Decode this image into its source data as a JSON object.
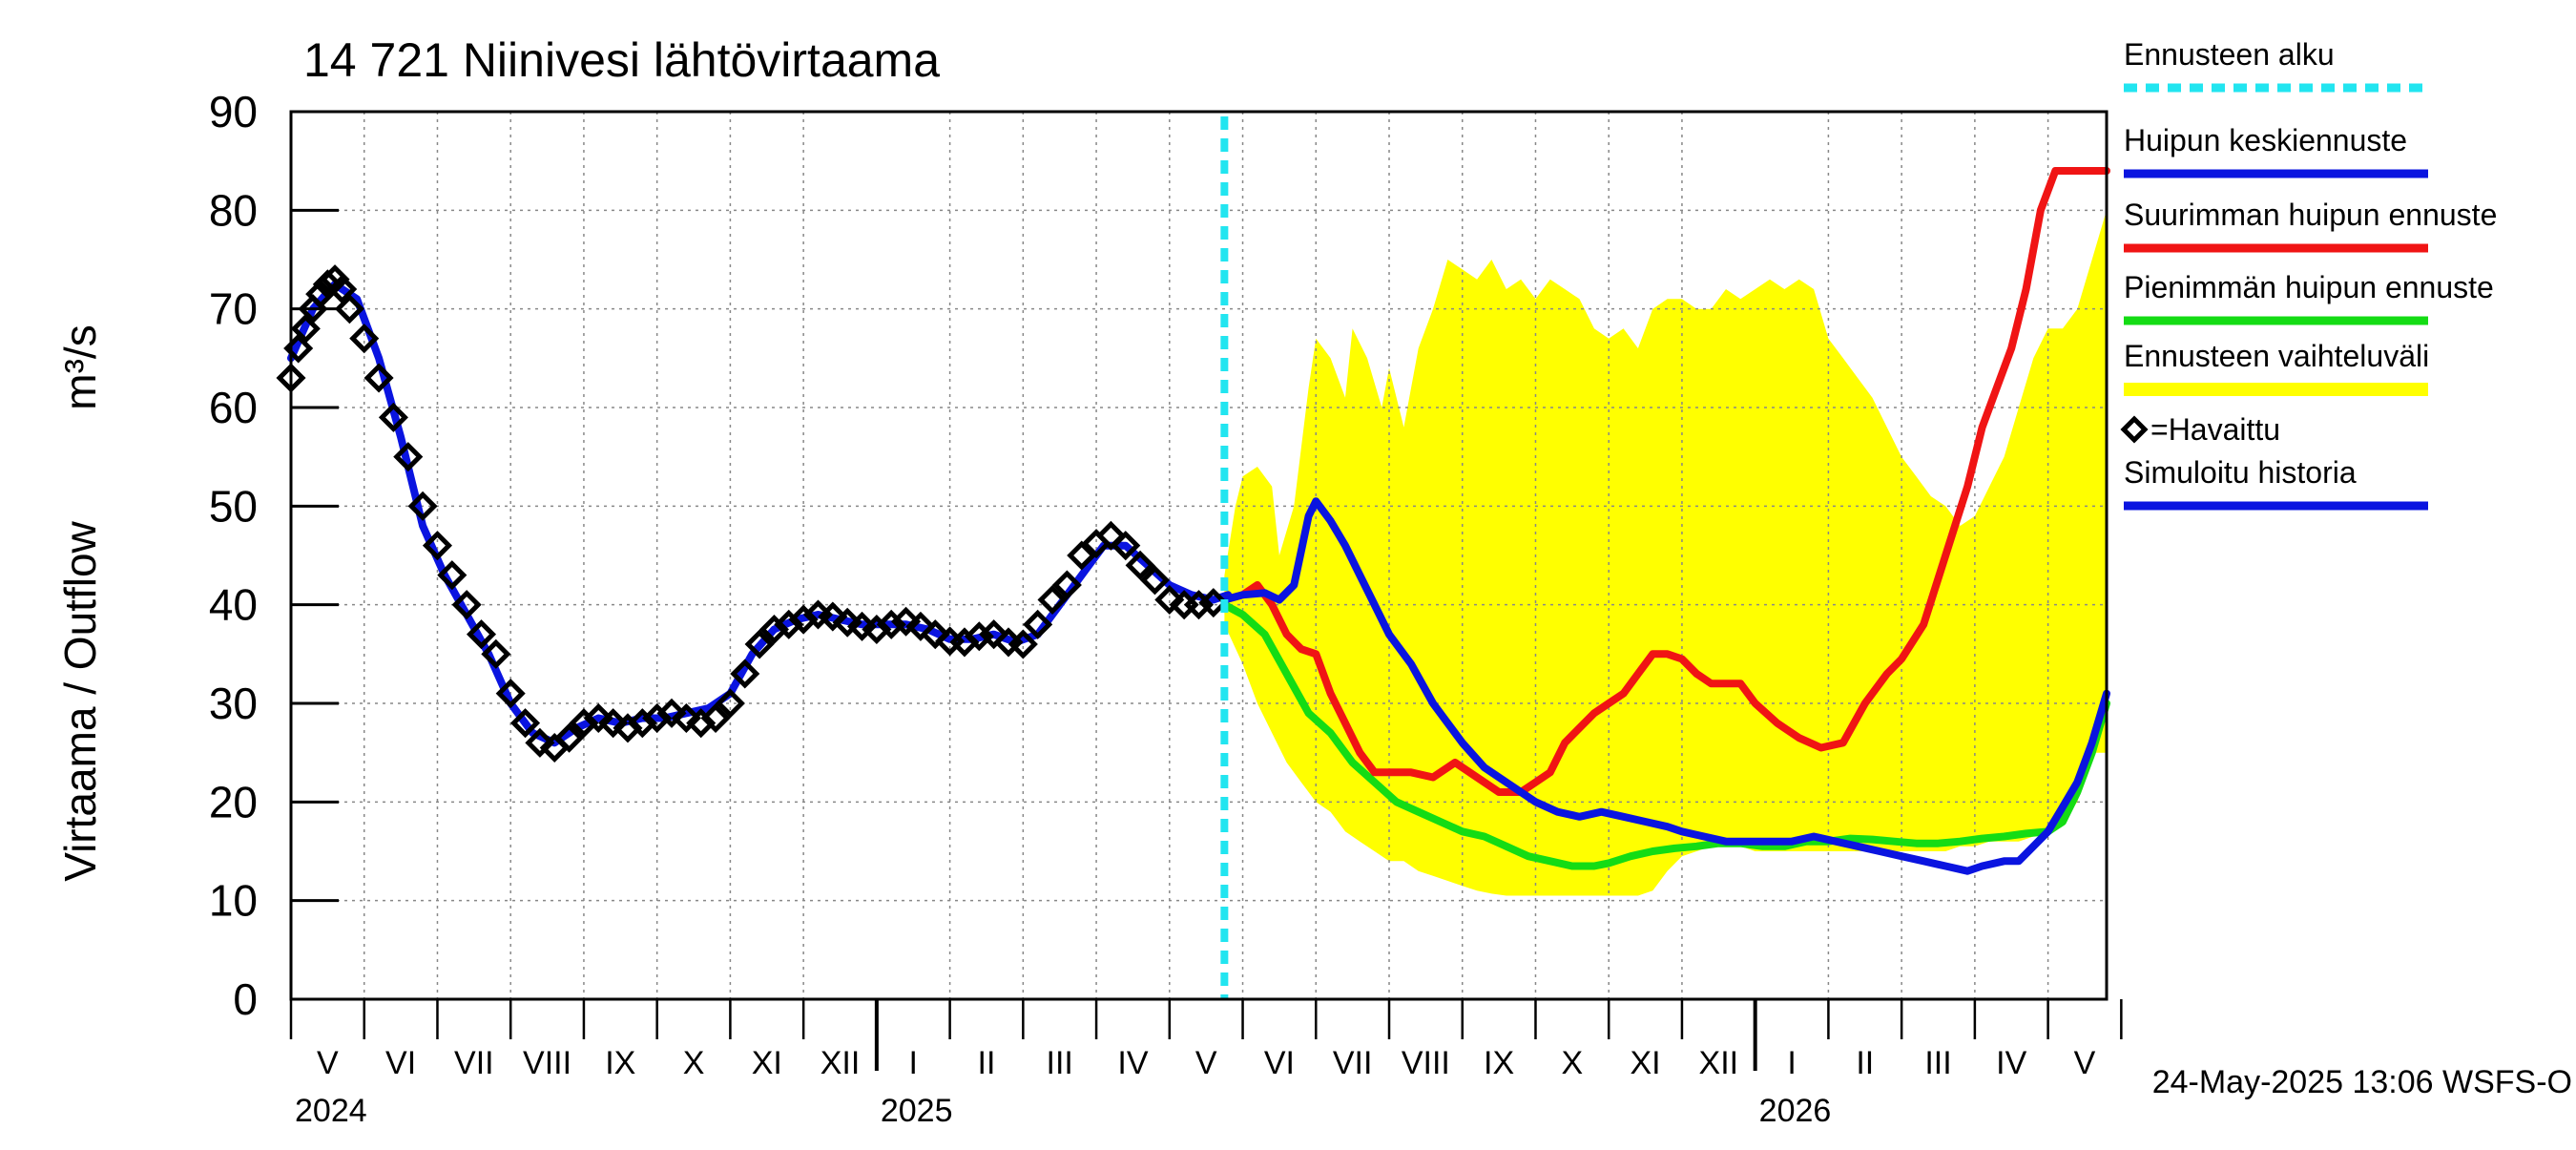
{
  "chart_data": {
    "type": "line",
    "title": "14 721 Niinivesi lähtövirtaama",
    "ylabel": "Virtaama / Outflow",
    "yunit": "m³/s",
    "ylim": [
      0,
      90
    ],
    "yticks": [
      0,
      10,
      20,
      30,
      40,
      50,
      60,
      70,
      80,
      90
    ],
    "xlim": [
      0,
      24.8
    ],
    "grid": true,
    "month_labels": [
      "V",
      "VI",
      "VII",
      "VIII",
      "IX",
      "X",
      "XI",
      "XII",
      "I",
      "II",
      "III",
      "IV",
      "V",
      "VI",
      "VII",
      "VIII",
      "IX",
      "X",
      "XI",
      "XII",
      "I",
      "II",
      "III",
      "IV",
      "V"
    ],
    "year_labels": [
      {
        "label": "2024",
        "pos": 0
      },
      {
        "label": "2025",
        "pos": 8
      },
      {
        "label": "2026",
        "pos": 20
      }
    ],
    "year_boundaries": [
      8,
      20
    ],
    "forecast_start": 12.75,
    "timestamp": "24-May-2025 13:06 WSFS-O",
    "legend": [
      {
        "label": "Ennusteen alku",
        "color": "#22e5f0",
        "style": "dash"
      },
      {
        "label": "Huipun keskiennuste",
        "color": "#0a14e0",
        "style": "line"
      },
      {
        "label": "Suurimman huipun ennuste",
        "color": "#f01414",
        "style": "line"
      },
      {
        "label": "Pienimmän huipun ennuste",
        "color": "#14dc14",
        "style": "line"
      },
      {
        "label": "Ennusteen vaihteluväli",
        "color": "#ffff00",
        "style": "band"
      },
      {
        "label": "=Havaittu",
        "color": "#000000",
        "style": "marker"
      },
      {
        "label": "Simuloitu historia",
        "color": "#0a14e0",
        "style": "line"
      }
    ],
    "series": {
      "observed": {
        "name": "Havaittu",
        "x": [
          0,
          0.1,
          0.2,
          0.3,
          0.4,
          0.5,
          0.6,
          0.7,
          0.8,
          1.0,
          1.2,
          1.4,
          1.6,
          1.8,
          2.0,
          2.2,
          2.4,
          2.6,
          2.8,
          3.0,
          3.2,
          3.4,
          3.6,
          3.8,
          4.0,
          4.2,
          4.4,
          4.6,
          4.8,
          5.0,
          5.2,
          5.4,
          5.6,
          5.8,
          6.0,
          6.2,
          6.4,
          6.6,
          6.8,
          7.0,
          7.2,
          7.4,
          7.6,
          7.8,
          8.0,
          8.2,
          8.4,
          8.6,
          8.8,
          9.0,
          9.2,
          9.4,
          9.6,
          9.8,
          10.0,
          10.2,
          10.4,
          10.6,
          10.8,
          11.0,
          11.2,
          11.4,
          11.6,
          11.8,
          12.0,
          12.2,
          12.4,
          12.6
        ],
        "y": [
          63,
          66,
          68,
          70,
          71.5,
          72.5,
          73,
          72,
          70,
          67,
          63,
          59,
          55,
          50,
          46,
          43,
          40,
          37,
          35,
          31,
          28,
          26,
          25.5,
          26.5,
          28,
          28.5,
          28,
          27.5,
          28,
          28.5,
          29,
          28.5,
          28,
          28.5,
          30,
          33,
          36,
          37.5,
          38,
          38.5,
          39,
          38.8,
          38.2,
          37.8,
          37.5,
          38,
          38.3,
          37.8,
          37,
          36.3,
          36.2,
          36.8,
          37,
          36.2,
          36,
          38,
          40.5,
          42,
          45,
          46.2,
          47,
          46,
          44,
          42.5,
          40.5,
          40,
          40,
          40.2
        ]
      },
      "simulated": {
        "name": "Simuloitu historia",
        "x": [
          0,
          0.3,
          0.6,
          0.9,
          1.2,
          1.5,
          1.8,
          2.1,
          2.4,
          2.7,
          3.0,
          3.3,
          3.6,
          3.9,
          4.2,
          4.5,
          4.8,
          5.1,
          5.4,
          5.7,
          6.0,
          6.3,
          6.6,
          6.9,
          7.2,
          7.5,
          7.8,
          8.1,
          8.4,
          8.7,
          9.0,
          9.3,
          9.6,
          9.9,
          10.2,
          10.5,
          10.8,
          11.1,
          11.4,
          11.7,
          12.0,
          12.3,
          12.6,
          12.8
        ],
        "y": [
          65,
          70,
          72.5,
          71,
          65,
          57,
          48,
          43,
          39,
          35,
          30,
          27,
          26,
          27.5,
          28.5,
          28,
          28.5,
          28.5,
          29,
          29.5,
          31,
          35,
          37.5,
          38.5,
          39,
          38.5,
          38,
          38,
          38,
          37.5,
          36.5,
          36.5,
          37,
          36.2,
          37,
          40,
          43,
          46,
          46,
          44,
          42,
          41,
          40.5,
          41
        ]
      },
      "upper_band": {
        "name": "Ennusteen vaihteluväli (ylä)",
        "x": [
          12.75,
          12.9,
          13.0,
          13.2,
          13.4,
          13.5,
          13.7,
          13.9,
          14.0,
          14.2,
          14.4,
          14.5,
          14.7,
          14.9,
          15.0,
          15.2,
          15.4,
          15.6,
          15.8,
          16.0,
          16.2,
          16.4,
          16.6,
          16.8,
          17.0,
          17.2,
          17.4,
          17.6,
          17.8,
          18.0,
          18.2,
          18.4,
          18.6,
          18.8,
          19.0,
          19.2,
          19.4,
          19.6,
          19.8,
          20.0,
          20.2,
          20.4,
          20.6,
          20.8,
          21.0,
          21.2,
          21.4,
          21.6,
          21.8,
          22.0,
          22.2,
          22.4,
          22.6,
          22.8,
          23.0,
          23.2,
          23.4,
          23.6,
          23.8,
          24.0,
          24.2,
          24.4,
          24.6,
          24.8
        ],
        "y": [
          43,
          50,
          53,
          54,
          52,
          45,
          50,
          62,
          67,
          65,
          61,
          68,
          65,
          60,
          64,
          58,
          66,
          70,
          75,
          74,
          73,
          75,
          72,
          73,
          71,
          73,
          72,
          71,
          68,
          67,
          68,
          66,
          70,
          71,
          71,
          70,
          70,
          72,
          71,
          72,
          73,
          72,
          73,
          72,
          67,
          65,
          63,
          61,
          58,
          55,
          53,
          51,
          50,
          48,
          49,
          52,
          55,
          60,
          65,
          68,
          68,
          70,
          75,
          80
        ]
      },
      "lower_band": {
        "name": "Ennusteen vaihteluväli (ala)",
        "x": [
          12.75,
          13.0,
          13.2,
          13.4,
          13.6,
          13.8,
          14.0,
          14.2,
          14.4,
          14.6,
          14.8,
          15.0,
          15.2,
          15.4,
          15.6,
          15.8,
          16.0,
          16.2,
          16.4,
          16.6,
          16.8,
          17.0,
          17.2,
          17.4,
          17.6,
          17.8,
          18.0,
          18.2,
          18.4,
          18.6,
          18.8,
          19.0,
          19.2,
          19.4,
          19.6,
          19.8,
          20.0,
          20.2,
          20.4,
          20.6,
          20.8,
          21.0,
          21.2,
          21.4,
          21.6,
          21.8,
          22.0,
          22.2,
          22.4,
          22.6,
          22.8,
          23.0,
          23.2,
          23.4,
          23.6,
          23.8,
          24.0,
          24.2,
          24.4,
          24.6,
          24.8
        ],
        "y": [
          38,
          34,
          30,
          27,
          24,
          22,
          20,
          19,
          17,
          16,
          15,
          14,
          14,
          13,
          12.5,
          12,
          11.5,
          11,
          10.7,
          10.5,
          10.5,
          10.5,
          10.5,
          10.5,
          10.5,
          10.5,
          10.5,
          10.5,
          10.5,
          11,
          13,
          14.5,
          15,
          15.5,
          15.5,
          15.5,
          15,
          15,
          15,
          15,
          15,
          15,
          15,
          15,
          15,
          15,
          15,
          15,
          15,
          15,
          15.5,
          15.5,
          16,
          16,
          16,
          16.5,
          17,
          18,
          20,
          25,
          25
        ]
      },
      "mean_peak": {
        "name": "Huipun keskiennuste",
        "x": [
          12.75,
          13.0,
          13.3,
          13.5,
          13.7,
          13.9,
          14.0,
          14.2,
          14.4,
          14.6,
          14.8,
          15.0,
          15.3,
          15.6,
          16.0,
          16.3,
          16.6,
          17.0,
          17.3,
          17.6,
          17.9,
          18.2,
          18.5,
          18.8,
          19.0,
          19.3,
          19.6,
          19.9,
          20.2,
          20.5,
          20.8,
          21.1,
          21.4,
          21.7,
          22.0,
          22.3,
          22.6,
          22.9,
          23.1,
          23.4,
          23.6,
          23.8,
          24.0,
          24.2,
          24.4,
          24.6,
          24.8
        ],
        "y": [
          40.5,
          41,
          41.2,
          40.5,
          42,
          49,
          50.5,
          48.5,
          46,
          43,
          40,
          37,
          34,
          30,
          26,
          23.5,
          22,
          20,
          19,
          18.5,
          19,
          18.5,
          18,
          17.5,
          17,
          16.5,
          16,
          16,
          16,
          16,
          16.5,
          16,
          15.5,
          15,
          14.5,
          14,
          13.5,
          13,
          13.5,
          14,
          14,
          15.5,
          17,
          19.5,
          22,
          26,
          31
        ]
      },
      "max_peak": {
        "name": "Suurimman huipun ennuste",
        "x": [
          12.75,
          13.0,
          13.2,
          13.4,
          13.6,
          13.8,
          14.0,
          14.2,
          14.4,
          14.6,
          14.8,
          15.0,
          15.3,
          15.6,
          15.9,
          16.2,
          16.5,
          16.8,
          17.0,
          17.2,
          17.4,
          17.6,
          17.8,
          18.0,
          18.2,
          18.4,
          18.6,
          18.8,
          19.0,
          19.2,
          19.4,
          19.6,
          19.8,
          20.0,
          20.3,
          20.6,
          20.9,
          21.2,
          21.5,
          21.8,
          22.0,
          22.3,
          22.6,
          22.9,
          23.1,
          23.3,
          23.5,
          23.7,
          23.9,
          24.1,
          24.3,
          24.5,
          24.7,
          24.8
        ],
        "y": [
          40.5,
          41,
          42,
          40,
          37,
          35.5,
          35,
          31,
          28,
          25,
          23,
          23,
          23,
          22.5,
          24,
          22.5,
          21,
          21,
          22,
          23,
          26,
          27.5,
          29,
          30,
          31,
          33,
          35,
          35,
          34.5,
          33,
          32,
          32,
          32,
          30,
          28,
          26.5,
          25.5,
          26,
          30,
          33,
          34.5,
          38,
          45,
          52,
          58,
          62,
          66,
          72,
          80,
          84,
          84,
          84,
          84,
          84
        ]
      },
      "min_peak": {
        "name": "Pienimmän huipun ennuste",
        "x": [
          12.75,
          13.0,
          13.3,
          13.6,
          13.9,
          14.2,
          14.5,
          14.8,
          15.1,
          15.4,
          15.7,
          16.0,
          16.3,
          16.6,
          16.9,
          17.2,
          17.5,
          17.8,
          18.0,
          18.3,
          18.6,
          18.9,
          19.2,
          19.5,
          19.8,
          20.1,
          20.4,
          20.7,
          21.0,
          21.3,
          21.6,
          21.9,
          22.2,
          22.5,
          22.8,
          23.1,
          23.4,
          23.7,
          24.0,
          24.2,
          24.4,
          24.6,
          24.8
        ],
        "y": [
          40,
          39,
          37,
          33,
          29,
          27,
          24,
          22,
          20,
          19,
          18,
          17,
          16.5,
          15.5,
          14.5,
          14,
          13.5,
          13.5,
          13.8,
          14.5,
          15,
          15.3,
          15.5,
          15.8,
          15.8,
          15.5,
          15.5,
          16,
          16,
          16.3,
          16.2,
          16,
          15.8,
          15.8,
          16,
          16.3,
          16.5,
          16.8,
          17,
          18,
          21,
          25,
          30
        ]
      }
    }
  }
}
